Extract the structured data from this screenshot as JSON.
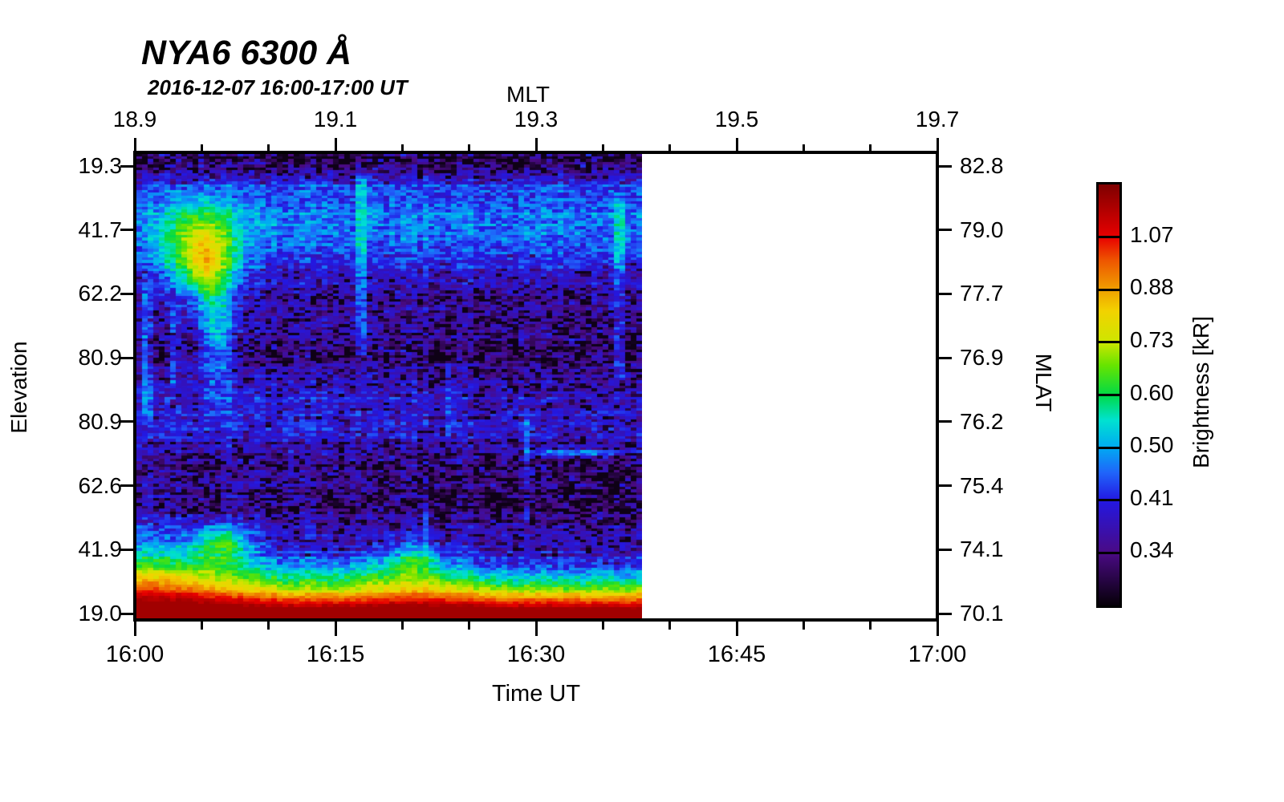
{
  "page": {
    "background": "#ffffff"
  },
  "title": "NYA6 6300 Å",
  "subtitle": "2016-12-07 16:00-17:00 UT",
  "axes": {
    "top": {
      "label": "MLT",
      "ticks": [
        "18.9",
        "19.1",
        "19.3",
        "19.5",
        "19.7"
      ]
    },
    "bottom": {
      "label": "Time UT",
      "ticks": [
        "16:00",
        "16:15",
        "16:30",
        "16:45",
        "17:00"
      ]
    },
    "left": {
      "label": "Elevation",
      "ticks": [
        "19.3",
        "41.7",
        "62.2",
        "80.9",
        "80.9",
        "62.6",
        "41.9",
        "19.0"
      ]
    },
    "right": {
      "label": "MLAT",
      "ticks": [
        "82.8",
        "79.0",
        "77.7",
        "76.9",
        "76.2",
        "75.4",
        "74.1",
        "70.1"
      ]
    }
  },
  "colorbar": {
    "label": "Brightness [kR]",
    "tick_labels": [
      "1.07",
      "0.88",
      "0.73",
      "0.60",
      "0.50",
      "0.41",
      "0.34"
    ]
  },
  "chart_data": {
    "type": "heatmap",
    "title": "NYA6 6300 Å",
    "subtitle": "2016-12-07 16:00-17:00 UT",
    "station": "NYA6",
    "wavelength_angstrom": 6300,
    "x": {
      "label": "Time UT",
      "start": "16:00",
      "end": "17:00",
      "major_ticks": [
        "16:00",
        "16:15",
        "16:30",
        "16:45",
        "17:00"
      ],
      "minor_tick_minutes": 5,
      "data_end": "16:38"
    },
    "x_top": {
      "label": "MLT",
      "major_ticks": [
        18.9,
        19.1,
        19.3,
        19.5,
        19.7
      ],
      "minors_per_interval": 2
    },
    "y": {
      "label": "Elevation",
      "ticks_degrees": [
        19.3,
        41.7,
        62.2,
        80.9,
        80.9,
        62.6,
        41.9,
        19.0
      ],
      "right_label": "MLAT",
      "right_ticks_degrees": [
        82.8,
        79.0,
        77.7,
        76.9,
        76.2,
        75.4,
        74.1,
        70.1
      ]
    },
    "z": {
      "label": "Brightness [kR]",
      "scale": "log",
      "range_kR": [
        0.28,
        1.3
      ],
      "colorbar_ticks_kR": [
        1.07,
        0.88,
        0.73,
        0.6,
        0.5,
        0.41,
        0.34
      ]
    },
    "no_data_region": {
      "from": "16:38",
      "to": "17:00",
      "color": "#ffffff"
    },
    "colormap_stops": [
      [
        0.0,
        "#060008"
      ],
      [
        0.125,
        "#4a0a84"
      ],
      [
        0.25,
        "#2318e2"
      ],
      [
        0.315,
        "#2064fa"
      ],
      [
        0.375,
        "#00aaf2"
      ],
      [
        0.44,
        "#00e2d0"
      ],
      [
        0.5,
        "#00da46"
      ],
      [
        0.57,
        "#66e400"
      ],
      [
        0.625,
        "#cde600"
      ],
      [
        0.7,
        "#f2d200"
      ],
      [
        0.75,
        "#f0a000"
      ],
      [
        0.82,
        "#ee5500"
      ],
      [
        0.875,
        "#e80000"
      ],
      [
        1.0,
        "#7e0000"
      ]
    ],
    "grid": {
      "cols": 90,
      "rows": 166
    },
    "field": {
      "base": 0.372,
      "bands": [
        {
          "v": 0.14,
          "sigma": 0.09,
          "amp": 0.1
        },
        {
          "v": 0.015,
          "sigma": 0.028,
          "amp": -0.085
        },
        {
          "v": 0.42,
          "sigma": 0.13,
          "amp": -0.048,
          "ug0": 0.4,
          "ug1": 0.75
        },
        {
          "v": 0.55,
          "sigma": 0.07,
          "amp": 0.045,
          "ug0": 1.0,
          "ug1": -0.25
        },
        {
          "v": 0.73,
          "sigma": 0.1,
          "amp": -0.062,
          "ug0": 0.45,
          "ug1": 0.65
        }
      ],
      "blobs": [
        {
          "u": 0.127,
          "v": 0.21,
          "su": 0.075,
          "sv": 0.095,
          "amp": 0.3
        },
        {
          "u": 0.135,
          "v": 0.24,
          "su": 0.028,
          "sv": 0.06,
          "amp": 0.13
        },
        {
          "u": 0.158,
          "v": 0.37,
          "su": 0.033,
          "sv": 0.14,
          "amp": 0.17
        },
        {
          "u": 0.17,
          "v": 0.845,
          "su": 0.06,
          "sv": 0.045,
          "amp": 0.21
        },
        {
          "u": 0.55,
          "v": 0.875,
          "su": 0.05,
          "sv": 0.033,
          "amp": 0.14
        },
        {
          "u": 0.87,
          "v": 0.645,
          "su": 0.1,
          "sv": 0.007,
          "amp": 0.17
        },
        {
          "u": 0.4,
          "v": 0.895,
          "su": 0.2,
          "sv": 0.025,
          "amp": 0.05
        }
      ],
      "vstreaks": [
        {
          "u": 0.445,
          "w": 0.008,
          "v0": 0.03,
          "v1": 0.45,
          "amp": 0.13
        },
        {
          "u": 0.955,
          "w": 0.007,
          "v0": 0.08,
          "v1": 0.5,
          "amp": 0.15
        },
        {
          "u": 0.02,
          "w": 0.007,
          "v0": 0.28,
          "v1": 0.58,
          "amp": 0.12
        },
        {
          "u": 0.075,
          "w": 0.006,
          "v0": 0.32,
          "v1": 0.52,
          "amp": 0.09
        },
        {
          "u": 0.3,
          "w": 0.006,
          "v0": 0.5,
          "v1": 0.72,
          "amp": 0.07
        },
        {
          "u": 0.62,
          "w": 0.006,
          "v0": 0.42,
          "v1": 0.62,
          "amp": 0.07
        },
        {
          "u": 0.775,
          "w": 0.006,
          "v0": 0.55,
          "v1": 0.82,
          "amp": 0.08
        },
        {
          "u": 0.57,
          "w": 0.005,
          "v0": 0.74,
          "v1": 0.86,
          "amp": 0.06
        }
      ],
      "glow": {
        "amp": 1.15,
        "height": 0.052,
        "left_boost": 0.038,
        "left_sigma": 0.2,
        "mid_bump": 0.012,
        "mid_u": 0.55,
        "mid_sigma": 0.12,
        "exp": 1.4
      },
      "noise": {
        "cell": 0.05,
        "row": 0.022,
        "col": 0.016,
        "dark_boost": 0.06,
        "dark_threshold": 0.37
      }
    }
  }
}
